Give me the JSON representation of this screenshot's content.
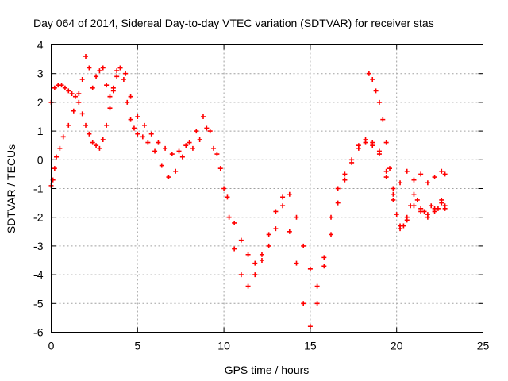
{
  "chart_data": {
    "type": "scatter",
    "title": "Day 064 of 2014, Sidereal Day-to-day VTEC variation (SDTVAR) for receiver stas",
    "xlabel": "GPS time / hours",
    "ylabel": "SDTVAR / TECUs",
    "xlim": [
      0,
      25
    ],
    "ylim": [
      -6,
      4
    ],
    "xticks": [
      0,
      5,
      10,
      15,
      20,
      25
    ],
    "yticks": [
      4,
      3,
      2,
      1,
      0,
      -1,
      -2,
      -3,
      -4,
      -5,
      -6
    ],
    "grid": true,
    "marker": "plus",
    "color": "#ff0000",
    "series": [
      {
        "x": [
          0.0,
          0.1,
          0.2,
          0.3,
          0.5,
          0.7,
          1.0,
          1.3,
          1.6,
          1.8,
          2.0,
          2.2,
          2.4,
          2.6,
          2.8,
          3.0,
          3.2,
          3.4,
          3.6,
          3.8,
          4.0,
          4.2,
          4.4,
          4.6,
          4.8,
          5.0,
          5.3,
          5.6,
          6.0,
          6.4,
          6.8,
          7.2,
          7.6,
          8.0,
          8.4,
          8.8,
          9.2,
          9.6,
          10.0,
          10.3,
          10.6,
          11.0,
          11.4,
          11.8,
          12.2,
          12.6,
          13.0,
          13.4,
          13.8,
          14.2,
          14.6,
          15.0,
          15.4,
          15.8,
          16.2,
          16.6,
          17.0,
          17.4,
          17.8,
          18.2,
          18.6,
          19.0,
          19.4,
          19.8,
          20.2,
          20.6,
          21.0,
          21.4,
          21.8,
          22.2,
          22.6,
          22.8
        ],
        "y": [
          -0.9,
          -0.7,
          -0.3,
          0.1,
          0.4,
          0.8,
          1.2,
          1.7,
          2.3,
          2.8,
          3.6,
          3.2,
          2.5,
          2.9,
          3.1,
          3.2,
          2.6,
          2.2,
          2.5,
          3.1,
          3.2,
          2.8,
          2.0,
          1.4,
          1.1,
          0.9,
          0.8,
          0.6,
          0.3,
          -0.2,
          -0.6,
          -0.4,
          0.1,
          0.6,
          1.0,
          1.5,
          1.0,
          0.2,
          -1.0,
          -2.0,
          -3.1,
          -4.0,
          -4.4,
          -4.0,
          -3.3,
          -2.6,
          -1.8,
          -1.3,
          -2.5,
          -3.6,
          -5.0,
          -5.8,
          -5.0,
          -3.4,
          -2.0,
          -1.0,
          -0.5,
          0.0,
          0.5,
          0.7,
          0.6,
          0.3,
          -0.6,
          -1.4,
          -2.3,
          -2.1,
          -1.6,
          -1.8,
          -2.0,
          -1.7,
          -1.4,
          -1.6
        ]
      },
      {
        "x": [
          0.0,
          0.2,
          0.4,
          0.6,
          0.8,
          1.0,
          1.2,
          1.4,
          1.6,
          1.8,
          2.0,
          2.2,
          2.4,
          2.6,
          2.8,
          3.0,
          3.2,
          3.4,
          3.6,
          3.8,
          4.0,
          4.3,
          4.6,
          5.0,
          5.4,
          5.8,
          6.2,
          6.6,
          7.0,
          7.4,
          7.8,
          8.2,
          8.6,
          9.0,
          9.4,
          9.8,
          10.2,
          10.6,
          11.0,
          11.4,
          11.8,
          12.2,
          12.6,
          13.0,
          13.4,
          13.8,
          14.2,
          14.6,
          15.0,
          15.4,
          15.8,
          16.2,
          16.6,
          17.0,
          17.4,
          17.8,
          18.2,
          18.6,
          19.0,
          19.4,
          19.8,
          20.2,
          20.6,
          21.0,
          21.4,
          21.8,
          22.2,
          22.6,
          22.8
        ],
        "y": [
          2.0,
          2.5,
          2.6,
          2.6,
          2.5,
          2.4,
          2.3,
          2.2,
          2.0,
          1.6,
          1.2,
          0.9,
          0.6,
          0.5,
          0.4,
          0.7,
          1.2,
          1.8,
          2.4,
          2.9,
          3.2,
          3.0,
          2.2,
          1.5,
          1.2,
          0.9,
          0.6,
          0.4,
          0.2,
          0.3,
          0.5,
          0.4,
          0.7,
          1.1,
          0.4,
          -0.3,
          -1.3,
          -2.2,
          -2.8,
          -3.3,
          -3.6,
          -3.5,
          -3.0,
          -2.4,
          -1.6,
          -1.2,
          -2.0,
          -3.0,
          -3.8,
          -4.4,
          -3.7,
          -2.6,
          -1.5,
          -0.7,
          -0.1,
          0.4,
          0.6,
          0.5,
          0.2,
          -0.4,
          -1.0,
          -0.8,
          -0.4,
          -0.7,
          -0.5,
          -0.8,
          -0.6,
          -0.4,
          -0.5
        ]
      },
      {
        "x": [
          18.4,
          18.6,
          18.8,
          19.0,
          19.2,
          19.4,
          19.6,
          19.8,
          20.0,
          20.2,
          20.4,
          20.6,
          20.8,
          21.0,
          21.2,
          21.4,
          21.6,
          21.8,
          22.0,
          22.2,
          22.4,
          22.6,
          22.8
        ],
        "y": [
          3.0,
          2.8,
          2.4,
          2.0,
          1.4,
          0.6,
          -0.3,
          -1.2,
          -1.9,
          -2.4,
          -2.3,
          -2.0,
          -1.6,
          -1.2,
          -1.4,
          -1.7,
          -1.8,
          -1.9,
          -1.6,
          -1.8,
          -1.7,
          -1.5,
          -1.7
        ]
      }
    ]
  }
}
